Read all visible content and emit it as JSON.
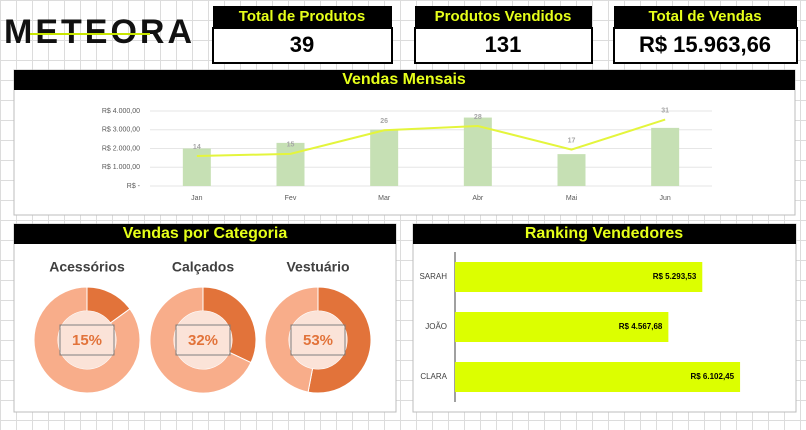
{
  "logo": "METEORA",
  "kpis": [
    {
      "label": "Total de Produtos",
      "value": 39
    },
    {
      "label": "Produtos Vendidos",
      "value": 131
    },
    {
      "label": "Total de Vendas",
      "value": "R$ 15.963,66"
    }
  ],
  "chart_data": [
    {
      "type": "combo",
      "title": "Vendas Mensais",
      "categories": [
        "Jan",
        "Fev",
        "Mar",
        "Abr",
        "Mai",
        "Jun"
      ],
      "series": [
        {
          "type": "bar",
          "color": "#c6e0b4",
          "values": [
            2000,
            2300,
            3000,
            3650,
            1700,
            3100
          ]
        },
        {
          "type": "line",
          "axis": "y2",
          "color": "#e4f53c",
          "values": [
            14,
            15,
            26,
            28,
            17,
            31
          ]
        }
      ],
      "ylim": [
        0,
        4000
      ],
      "yticks": [
        {
          "value": 0,
          "label": "R$ -"
        },
        {
          "value": 1000,
          "label": "R$ 1.000,00"
        },
        {
          "value": 2000,
          "label": "R$ 2.000,00"
        },
        {
          "value": 3000,
          "label": "R$ 3.000,00"
        },
        {
          "value": 4000,
          "label": "R$ 4.000,00"
        }
      ],
      "y2lim": [
        0,
        35
      ],
      "grid": true
    },
    {
      "type": "donut",
      "title": "Vendas por Categoria",
      "donuts": [
        {
          "title": "Acessórios",
          "values": [
            15,
            85
          ],
          "value_labels": [
            "15%",
            null
          ],
          "colors": [
            "#e2733a",
            "#f8ad8a"
          ]
        },
        {
          "title": "Calçados",
          "values": [
            32,
            68
          ],
          "value_labels": [
            "32%",
            null
          ],
          "colors": [
            "#e2733a",
            "#f8ad8a"
          ]
        },
        {
          "title": "Vestuário",
          "values": [
            53,
            47
          ],
          "value_labels": [
            "53%",
            null
          ],
          "colors": [
            "#e2733a",
            "#f8ad8a"
          ]
        }
      ]
    },
    {
      "type": "barh",
      "title": "Ranking Vendedores",
      "categories": [
        "SARAH",
        "JOÃO",
        "CLARA"
      ],
      "values": [
        5293.53,
        4567.68,
        6102.45
      ],
      "value_labels": [
        "R$ 5.293,53",
        "R$ 4.567,68",
        "R$ 6.102,45"
      ],
      "color": "#dcff00",
      "xlim": [
        0,
        7000
      ]
    }
  ]
}
